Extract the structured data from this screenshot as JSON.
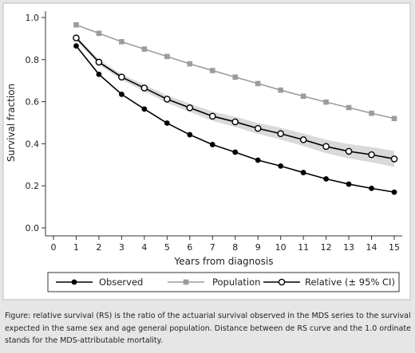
{
  "chart_data": {
    "type": "line",
    "xlabel": "Years from diagnosis",
    "ylabel": "Survival fraction",
    "xlim": [
      0,
      15
    ],
    "ylim": [
      0,
      1
    ],
    "x_ticks": [
      "0",
      "1",
      "2",
      "3",
      "4",
      "5",
      "6",
      "7",
      "8",
      "9",
      "10",
      "11",
      "12",
      "13",
      "14",
      "15"
    ],
    "y_ticks": [
      "0.0",
      "0.2",
      "0.4",
      "0.6",
      "0.8",
      "1.0"
    ],
    "x": [
      1,
      2,
      3,
      4,
      5,
      6,
      7,
      8,
      9,
      10,
      11,
      12,
      13,
      14,
      15
    ],
    "series": [
      {
        "name": "Observed",
        "color": "#000000",
        "marker": "filled-circle",
        "values": [
          0.865,
          0.73,
          0.635,
          0.565,
          0.498,
          0.443,
          0.396,
          0.36,
          0.322,
          0.294,
          0.263,
          0.233,
          0.208,
          0.188,
          0.17
        ]
      },
      {
        "name": "Population",
        "color": "#9c9c9c",
        "marker": "filled-square",
        "values": [
          0.965,
          0.925,
          0.885,
          0.85,
          0.815,
          0.78,
          0.748,
          0.717,
          0.686,
          0.655,
          0.626,
          0.598,
          0.572,
          0.545,
          0.52
        ]
      },
      {
        "name": "Relative (± 95% CI)",
        "color": "#000000",
        "marker": "hollow-circle",
        "values": [
          0.903,
          0.788,
          0.717,
          0.665,
          0.612,
          0.571,
          0.531,
          0.504,
          0.473,
          0.448,
          0.419,
          0.387,
          0.364,
          0.348,
          0.328
        ],
        "ci_lower": [
          0.893,
          0.776,
          0.703,
          0.649,
          0.594,
          0.551,
          0.509,
          0.48,
          0.447,
          0.42,
          0.389,
          0.355,
          0.33,
          0.312,
          0.29
        ],
        "ci_upper": [
          0.913,
          0.8,
          0.731,
          0.681,
          0.63,
          0.591,
          0.553,
          0.528,
          0.499,
          0.476,
          0.449,
          0.419,
          0.398,
          0.384,
          0.366
        ],
        "ci_color": "#d9d9d9"
      }
    ],
    "grid": false,
    "legend_position": "bottom"
  },
  "caption": "Figure: relative survival (RS) is the ratio of the actuarial survival observed in the MDS series to the survival expected in the same sex and age general population. Distance between de RS curve and the 1.0 ordinate stands for the MDS-attributable mortality."
}
